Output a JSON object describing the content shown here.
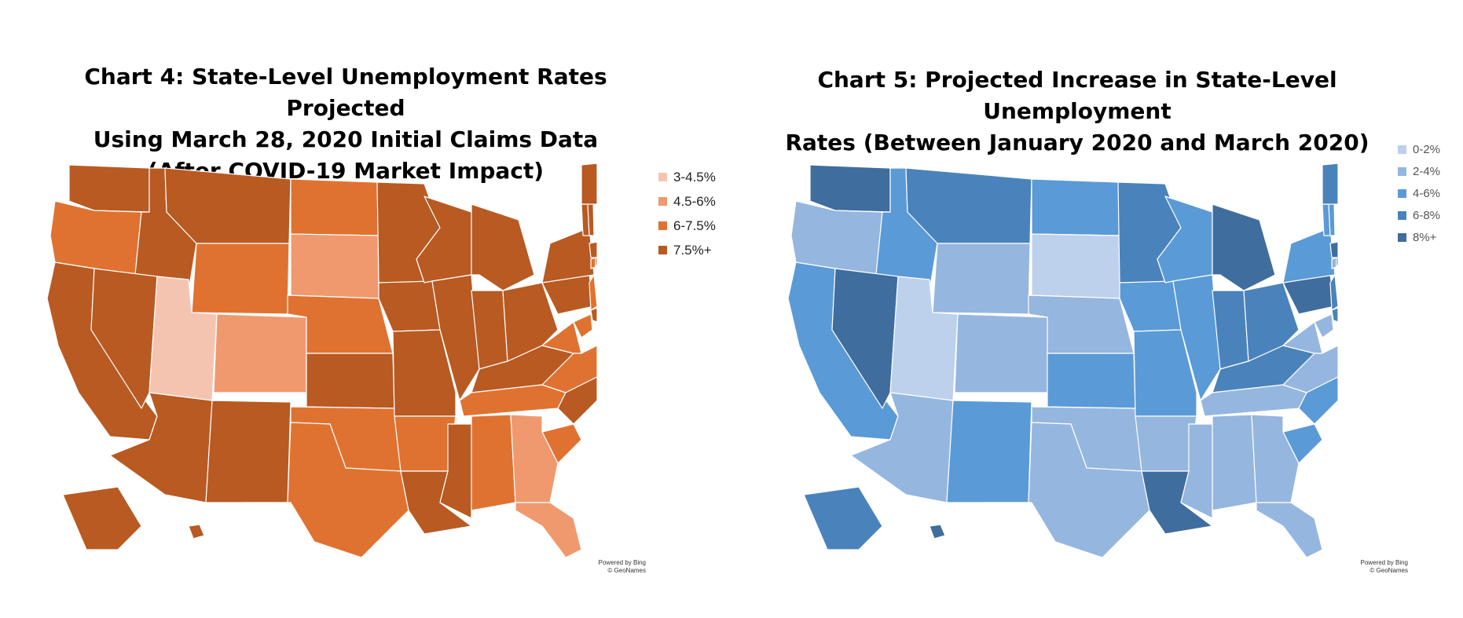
{
  "maps": [
    {
      "title_lines": [
        "Chart 4: State-Level Unemployment Rates Projected",
        "Using March 28, 2020 Initial Claims Data",
        "(After COVID-19 Market Impact)"
      ],
      "legend": [
        {
          "label": "3-4.5%",
          "color": "#f5c4b1"
        },
        {
          "label": "4.5-6%",
          "color": "#f0996e"
        },
        {
          "label": "6-7.5%",
          "color": "#e07231"
        },
        {
          "label": "7.5%+",
          "color": "#b85a22"
        }
      ],
      "credit_lines": [
        "Powered by Bing",
        "© GeoNames"
      ],
      "state_classes": {
        "WA": 3,
        "OR": 2,
        "CA": 3,
        "ID": 3,
        "NV": 3,
        "MT": 3,
        "WY": 2,
        "UT": 0,
        "AZ": 3,
        "CO": 1,
        "NM": 3,
        "ND": 2,
        "SD": 1,
        "NE": 2,
        "KS": 3,
        "OK": 2,
        "TX": 2,
        "MN": 3,
        "IA": 3,
        "MO": 3,
        "AR": 2,
        "LA": 3,
        "WI": 3,
        "IL": 3,
        "MS": 3,
        "MI": 3,
        "IN": 3,
        "KY": 3,
        "TN": 2,
        "AL": 2,
        "OH": 3,
        "WV": 2,
        "VA": 2,
        "NC": 3,
        "SC": 2,
        "GA": 1,
        "FL": 1,
        "PA": 3,
        "NY": 3,
        "NJ": 2,
        "DE": 3,
        "MD": 2,
        "CT": 2,
        "RI": 3,
        "MA": 3,
        "VT": 3,
        "NH": 3,
        "ME": 3,
        "AK": 3,
        "HI": 3
      }
    },
    {
      "title_lines": [
        "Chart 5: Projected Increase in State-Level Unemployment",
        "Rates (Between January 2020 and March 2020)"
      ],
      "legend": [
        {
          "label": "0-2%",
          "color": "#bdd1ec"
        },
        {
          "label": "2-4%",
          "color": "#95b6df"
        },
        {
          "label": "4-6%",
          "color": "#5a9ad7"
        },
        {
          "label": "6-8%",
          "color": "#4a83bb"
        },
        {
          "label": "8%+",
          "color": "#3f6d9e"
        }
      ],
      "credit_lines": [
        "Powered by Bing",
        "© GeoNames"
      ],
      "state_classes": {
        "WA": 4,
        "OR": 1,
        "CA": 2,
        "ID": 2,
        "NV": 4,
        "MT": 3,
        "WY": 1,
        "UT": 0,
        "AZ": 1,
        "CO": 1,
        "NM": 2,
        "ND": 2,
        "SD": 0,
        "NE": 1,
        "KS": 2,
        "OK": 1,
        "TX": 1,
        "MN": 3,
        "IA": 2,
        "MO": 2,
        "AR": 1,
        "LA": 4,
        "WI": 2,
        "IL": 2,
        "MS": 1,
        "MI": 4,
        "IN": 3,
        "KY": 3,
        "TN": 1,
        "AL": 1,
        "OH": 3,
        "WV": 1,
        "VA": 1,
        "NC": 2,
        "SC": 2,
        "GA": 1,
        "FL": 1,
        "PA": 4,
        "NY": 2,
        "NJ": 3,
        "DE": 3,
        "MD": 1,
        "CT": 1,
        "RI": 4,
        "MA": 4,
        "VT": 2,
        "NH": 2,
        "ME": 3,
        "AK": 3,
        "HI": 4
      }
    }
  ]
}
